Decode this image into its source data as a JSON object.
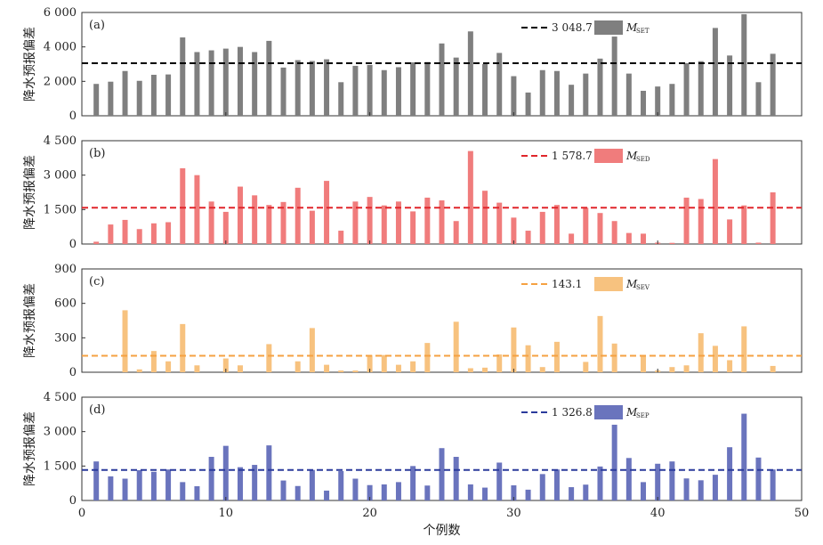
{
  "chart_data": {
    "type": "bar",
    "xlabel": "个例数",
    "xlim": [
      0,
      50
    ],
    "xticks": [
      0,
      10,
      20,
      30,
      40,
      50
    ],
    "xtick_labels": [
      "0",
      "10",
      "20",
      "30",
      "40",
      "50"
    ],
    "x": [
      1,
      2,
      3,
      4,
      5,
      6,
      7,
      8,
      9,
      10,
      11,
      12,
      13,
      14,
      15,
      16,
      17,
      18,
      19,
      20,
      21,
      22,
      23,
      24,
      25,
      26,
      27,
      28,
      29,
      30,
      31,
      32,
      33,
      34,
      35,
      36,
      37,
      38,
      39,
      40,
      41,
      42,
      43,
      44,
      45,
      46,
      47,
      48
    ],
    "panels": [
      {
        "label": "(a)",
        "ylabel": "降水预报偏差",
        "ylim": [
          0,
          6000
        ],
        "yticks": [
          0,
          2000,
          4000,
          6000
        ],
        "ytick_labels": [
          "0",
          "2 000",
          "4 000",
          "6 000"
        ],
        "color": "#7f7f7f",
        "mean_color": "#000000",
        "mean": 3048.7,
        "mean_label": "3 048.7",
        "legend_symbol": "M",
        "legend_sub": "SET",
        "values": [
          1850,
          1980,
          2600,
          2030,
          2380,
          2400,
          4550,
          3700,
          3800,
          3900,
          4000,
          3700,
          4350,
          2800,
          3230,
          3180,
          3280,
          1950,
          2900,
          2950,
          2650,
          2820,
          3100,
          3120,
          4200,
          3380,
          4900,
          3000,
          3650,
          2300,
          1350,
          2650,
          2600,
          1800,
          2450,
          3320,
          4600,
          2450,
          1450,
          1700,
          1850,
          3060,
          3170,
          5100,
          3500,
          5900,
          1950,
          3600
        ]
      },
      {
        "label": "(b)",
        "ylabel": "降水预报偏差",
        "ylim": [
          0,
          4500
        ],
        "yticks": [
          0,
          1500,
          3000,
          4500
        ],
        "ytick_labels": [
          "0",
          "1 500",
          "3 000",
          "4 500"
        ],
        "color": "#f07c7c",
        "mean_color": "#e0262b",
        "mean": 1578.7,
        "mean_label": "1 578.7",
        "legend_symbol": "M",
        "legend_sub": "SED",
        "values": [
          100,
          850,
          1050,
          650,
          900,
          950,
          3300,
          3000,
          1850,
          1400,
          2500,
          2120,
          1700,
          1830,
          2450,
          1450,
          2750,
          580,
          1850,
          2050,
          1680,
          1850,
          1420,
          2020,
          1900,
          1000,
          4050,
          2320,
          1800,
          1150,
          580,
          1400,
          1700,
          450,
          1580,
          1350,
          1000,
          480,
          450,
          60,
          50,
          2020,
          1960,
          3700,
          1070,
          1680,
          60,
          2250
        ]
      },
      {
        "label": "(c)",
        "ylabel": "降水预报偏差",
        "ylim": [
          0,
          900
        ],
        "yticks": [
          0,
          300,
          600,
          900
        ],
        "ytick_labels": [
          "0",
          "300",
          "600",
          "900"
        ],
        "color": "#f7c27f",
        "mean_color": "#f5a142",
        "mean": 143.1,
        "mean_label": "143.1",
        "legend_symbol": "M",
        "legend_sub": "SEV",
        "values": [
          0,
          0,
          540,
          25,
          185,
          95,
          420,
          60,
          0,
          120,
          60,
          0,
          245,
          0,
          95,
          385,
          65,
          15,
          15,
          150,
          150,
          65,
          95,
          255,
          0,
          440,
          35,
          40,
          155,
          390,
          235,
          45,
          265,
          0,
          90,
          490,
          250,
          0,
          140,
          15,
          45,
          60,
          340,
          230,
          105,
          400,
          0,
          55
        ]
      },
      {
        "label": "(d)",
        "ylabel": "降水预报偏差",
        "ylim": [
          0,
          4500
        ],
        "yticks": [
          0,
          1500,
          3000,
          4500
        ],
        "ytick_labels": [
          "0",
          "1 500",
          "3 000",
          "4 500"
        ],
        "color": "#6a74bd",
        "mean_color": "#2b3b9c",
        "mean": 1326.8,
        "mean_label": "1 326.8",
        "legend_symbol": "M",
        "legend_sub": "SEP",
        "values": [
          1700,
          1050,
          950,
          1320,
          1250,
          1350,
          800,
          620,
          1900,
          2380,
          1450,
          1550,
          2400,
          870,
          630,
          1330,
          430,
          1280,
          950,
          670,
          700,
          800,
          1500,
          650,
          2280,
          1900,
          700,
          560,
          1650,
          660,
          470,
          1150,
          1350,
          580,
          690,
          1480,
          3300,
          1850,
          800,
          1600,
          1700,
          960,
          880,
          1120,
          2320,
          3780,
          1870,
          1350
        ]
      }
    ]
  }
}
